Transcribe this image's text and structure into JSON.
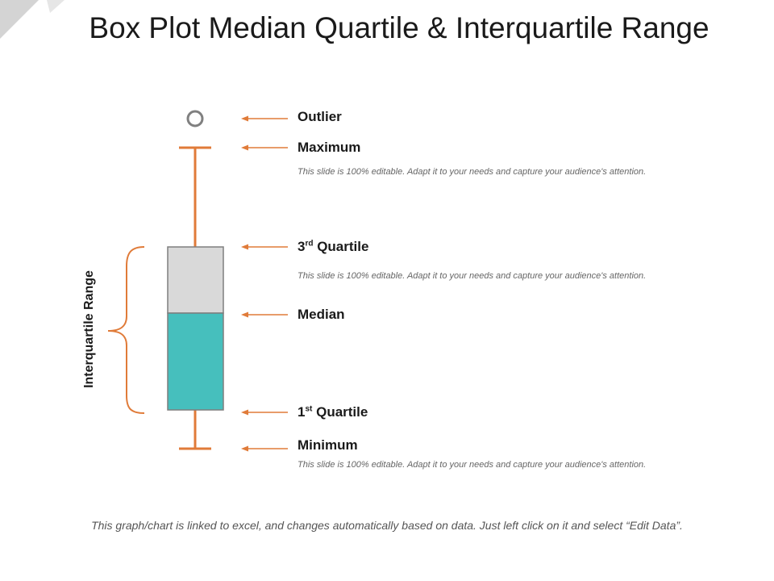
{
  "title": "Box Plot Median Quartile & Interquartile Range",
  "axis_label": "Interquartile Range",
  "labels": {
    "outlier": "Outlier",
    "maximum": "Maximum",
    "q3_num": "3",
    "q3_sup": "rd",
    "q3_word": " Quartile",
    "median": "Median",
    "q1_num": "1",
    "q1_sup": "st",
    "q1_word": " Quartile",
    "minimum": "Minimum"
  },
  "descriptions": {
    "maximum": "This slide is 100% editable. Adapt it to your needs and capture your audience's attention.",
    "q3": "This slide is 100% editable. Adapt it to your needs and capture your audience's attention.",
    "minimum": "This slide is 100% editable. Adapt it to your needs and capture your audience's attention."
  },
  "footer": "This graph/chart is linked to excel, and changes automatically based on data. Just left click on it and select “Edit Data”.",
  "colors": {
    "accent": "#E07B39",
    "upper_box": "#D9D9D9",
    "lower_box": "#46BFBD",
    "outlier": "#808080",
    "corner": "#D9D9D9"
  }
}
